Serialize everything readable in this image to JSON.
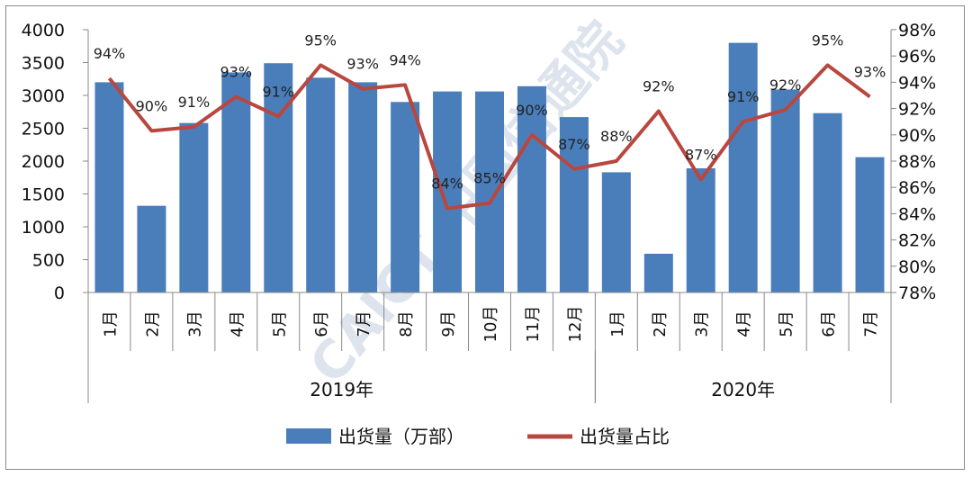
{
  "chart_data": {
    "type": "bar+line",
    "categories": [
      "1月",
      "2月",
      "3月",
      "4月",
      "5月",
      "6月",
      "7月",
      "8月",
      "9月",
      "10月",
      "11月",
      "12月",
      "1月",
      "2月",
      "3月",
      "4月",
      "5月",
      "6月",
      "7月"
    ],
    "groups": [
      {
        "label": "2019年",
        "start": 0,
        "end": 11
      },
      {
        "label": "2020年",
        "start": 12,
        "end": 18
      }
    ],
    "series": [
      {
        "name": "出货量（万部）",
        "type": "bar",
        "axis": "left",
        "color": "#4a7ebb",
        "values": [
          3200,
          1320,
          2580,
          3350,
          3490,
          3270,
          3200,
          2900,
          3060,
          3060,
          3140,
          2670,
          1830,
          590,
          1890,
          3800,
          3090,
          2730,
          2060
        ]
      },
      {
        "name": "出货量占比",
        "type": "line",
        "axis": "right",
        "color": "#b8473f",
        "values": [
          94.3,
          90.3,
          90.6,
          92.9,
          91.4,
          95.3,
          93.5,
          93.8,
          84.4,
          84.8,
          90.0,
          87.4,
          88.0,
          91.8,
          86.6,
          91.0,
          91.9,
          95.3,
          92.9
        ],
        "labels": [
          "94%",
          "90%",
          "91%",
          "93%",
          "91%",
          "95%",
          "93%",
          "94%",
          "84%",
          "85%",
          "90%",
          "87%",
          "88%",
          "92%",
          "87%",
          "91%",
          "92%",
          "95%",
          "93%"
        ]
      }
    ],
    "yleft": {
      "min": 0,
      "max": 4000,
      "ticks": [
        "0",
        "500",
        "1000",
        "1500",
        "2000",
        "2500",
        "3000",
        "3500",
        "4000"
      ]
    },
    "yright": {
      "min": 78,
      "max": 98,
      "ticks": [
        "78%",
        "80%",
        "82%",
        "84%",
        "86%",
        "88%",
        "90%",
        "92%",
        "94%",
        "96%",
        "98%"
      ]
    },
    "legend": {
      "position": "bottom",
      "items": [
        "出货量（万部）",
        "出货量占比"
      ]
    },
    "watermark": "CAICT 中国信通院"
  }
}
